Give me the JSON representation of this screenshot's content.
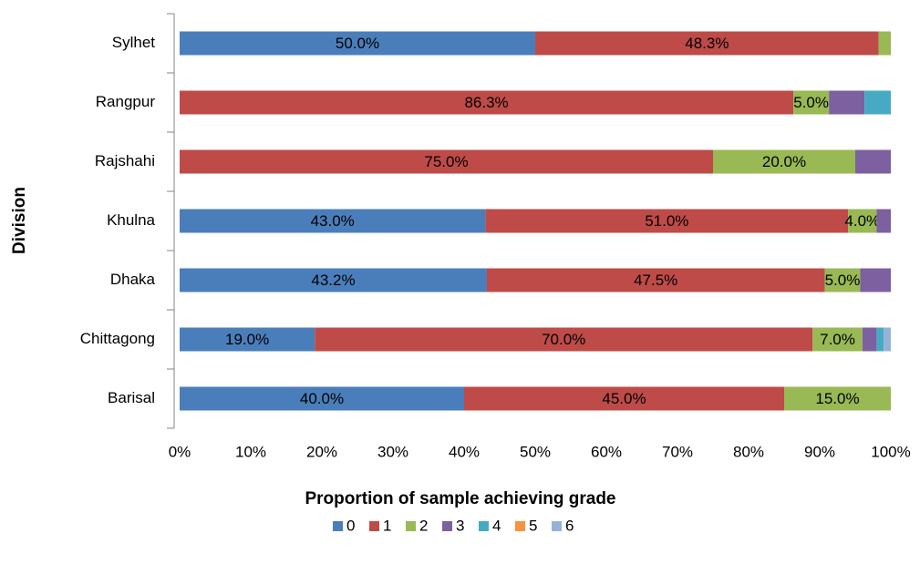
{
  "chart_data": {
    "type": "stacked_barh",
    "x_label": "Proportion of sample achieving grade",
    "y_label": "Division",
    "categories": [
      "Barisal",
      "Chittagong",
      "Dhaka",
      "Khulna",
      "Rajshahi",
      "Rangpur",
      "Sylhet"
    ],
    "series": [
      {
        "name": "0",
        "color": "#4a7ebb",
        "values": [
          40.0,
          19.0,
          43.2,
          43.0,
          0,
          0,
          50.0
        ],
        "value_labels": [
          "40.0%",
          "19.0%",
          "43.2%",
          "43.0%",
          null,
          null,
          "50.0%"
        ]
      },
      {
        "name": "1",
        "color": "#be4b48",
        "values": [
          45.0,
          70.0,
          47.5,
          51.0,
          75.0,
          86.3,
          48.3
        ],
        "value_labels": [
          "45.0%",
          "70.0%",
          "47.5%",
          "51.0%",
          "75.0%",
          "86.3%",
          "48.3%"
        ]
      },
      {
        "name": "2",
        "color": "#98b954",
        "values": [
          15.0,
          7.0,
          5.0,
          4.0,
          20.0,
          5.0,
          1.7
        ],
        "value_labels": [
          "15.0%",
          "7.0%",
          "5.0%",
          "4.0%",
          "20.0%",
          "5.0%",
          null
        ]
      },
      {
        "name": "3",
        "color": "#7d60a0",
        "values": [
          0,
          2.0,
          4.3,
          2.0,
          5.0,
          5.0,
          0
        ]
      },
      {
        "name": "4",
        "color": "#46aac5",
        "values": [
          0,
          1.0,
          0,
          0,
          0,
          3.7,
          0
        ]
      },
      {
        "name": "5",
        "color": "#f69240",
        "values": [
          0,
          0,
          0,
          0,
          0,
          0,
          0
        ]
      },
      {
        "name": "6",
        "color": "#95b3d7",
        "values": [
          0,
          1.0,
          0,
          0,
          0,
          0,
          0
        ]
      }
    ],
    "xlim": [
      0,
      100
    ],
    "xticks": [
      {
        "value": 0,
        "label": "0%"
      },
      {
        "value": 10,
        "label": "10%"
      },
      {
        "value": 20,
        "label": "20%"
      },
      {
        "value": 30,
        "label": "30%"
      },
      {
        "value": 40,
        "label": "40%"
      },
      {
        "value": 50,
        "label": "50%"
      },
      {
        "value": 60,
        "label": "60%"
      },
      {
        "value": 70,
        "label": "70%"
      },
      {
        "value": 80,
        "label": "80%"
      },
      {
        "value": 90,
        "label": "90%"
      },
      {
        "value": 100,
        "label": "100%"
      }
    ],
    "legend": "bottom"
  }
}
